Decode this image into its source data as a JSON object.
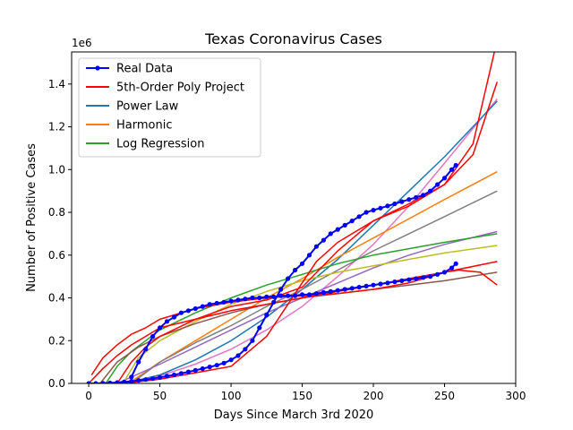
{
  "chart_data": {
    "type": "line",
    "title": "Texas Coronavirus Cases",
    "xlabel": "Days Since March 3rd 2020",
    "ylabel": "Number of Positive Cases",
    "y_scale_label": "1e6",
    "xlim": [
      -12,
      300
    ],
    "ylim": [
      0,
      1.55
    ],
    "x_ticks": [
      0,
      50,
      100,
      150,
      200,
      250,
      300
    ],
    "x_tick_labels": [
      "0",
      "50",
      "100",
      "150",
      "200",
      "250",
      "300"
    ],
    "y_ticks": [
      0,
      0.2,
      0.4,
      0.6,
      0.8,
      1.0,
      1.2,
      1.4
    ],
    "y_tick_labels": [
      "0.0",
      "0.2",
      "0.4",
      "0.6",
      "0.8",
      "1.0",
      "1.2",
      "1.4"
    ],
    "grid": false,
    "legend_placement": "top-left",
    "legend": [
      {
        "label": "Real Data",
        "color": "#0000ff",
        "marker": true
      },
      {
        "label": "5th-Order Poly Project",
        "color": "#ff0000",
        "marker": false
      },
      {
        "label": "Power Law",
        "color": "#1f77b4",
        "marker": false
      },
      {
        "label": "Harmonic",
        "color": "#ff7f0e",
        "marker": false
      },
      {
        "label": "Log Regression",
        "color": "#2ca02c",
        "marker": false
      }
    ],
    "series": [
      {
        "color": "#e377c2",
        "width": 1.5,
        "x": [
          22,
          50,
          75,
          100,
          125,
          150,
          175,
          200,
          225,
          250,
          287
        ],
        "y": [
          0,
          0.035,
          0.09,
          0.16,
          0.25,
          0.36,
          0.5,
          0.65,
          0.83,
          1.03,
          1.33
        ]
      },
      {
        "color": "#1f77b4",
        "width": 1.5,
        "x": [
          25,
          50,
          75,
          100,
          125,
          150,
          175,
          200,
          225,
          250,
          287
        ],
        "y": [
          0,
          0.04,
          0.11,
          0.2,
          0.31,
          0.44,
          0.58,
          0.74,
          0.9,
          1.06,
          1.32
        ]
      },
      {
        "color": "#ff7f0e",
        "width": 1.5,
        "x": [
          28,
          50,
          75,
          100,
          125,
          150,
          175,
          200,
          225,
          250,
          287
        ],
        "y": [
          0,
          0.1,
          0.2,
          0.3,
          0.4,
          0.49,
          0.59,
          0.68,
          0.77,
          0.86,
          0.99
        ]
      },
      {
        "color": "#7f7f7f",
        "width": 1.5,
        "x": [
          30,
          50,
          75,
          100,
          125,
          150,
          175,
          200,
          225,
          250,
          287
        ],
        "y": [
          0,
          0.1,
          0.19,
          0.27,
          0.36,
          0.44,
          0.53,
          0.62,
          0.7,
          0.78,
          0.9
        ]
      },
      {
        "color": "#9467bd",
        "width": 1.5,
        "x": [
          20,
          50,
          75,
          100,
          125,
          150,
          175,
          200,
          225,
          250,
          287
        ],
        "y": [
          0,
          0.09,
          0.17,
          0.25,
          0.33,
          0.4,
          0.47,
          0.54,
          0.6,
          0.65,
          0.71
        ]
      },
      {
        "color": "#bcbd22",
        "width": 1.5,
        "x": [
          24,
          35,
          50,
          75,
          100,
          125,
          150,
          175,
          200,
          225,
          250,
          287
        ],
        "y": [
          0,
          0.12,
          0.2,
          0.29,
          0.37,
          0.43,
          0.48,
          0.52,
          0.55,
          0.58,
          0.61,
          0.645
        ]
      },
      {
        "color": "#2ca02c",
        "width": 1.5,
        "x": [
          12,
          20,
          30,
          40,
          50,
          75,
          100,
          125,
          150,
          175,
          200,
          225,
          250,
          287
        ],
        "y": [
          0,
          0.08,
          0.15,
          0.2,
          0.25,
          0.33,
          0.4,
          0.46,
          0.51,
          0.56,
          0.6,
          0.63,
          0.66,
          0.7
        ]
      },
      {
        "color": "#8c564b",
        "width": 1.5,
        "x": [
          8,
          20,
          35,
          50,
          75,
          100,
          125,
          150,
          175,
          200,
          225,
          250,
          287
        ],
        "y": [
          0,
          0.1,
          0.17,
          0.22,
          0.28,
          0.33,
          0.37,
          0.4,
          0.42,
          0.44,
          0.46,
          0.48,
          0.52
        ]
      },
      {
        "color": "#ff0000",
        "width": 1.5,
        "x": [
          2,
          10,
          20,
          30,
          40,
          50,
          60,
          75,
          100,
          125,
          150,
          175,
          200,
          225,
          240,
          250,
          260,
          275,
          287
        ],
        "y": [
          0.04,
          0.12,
          0.18,
          0.23,
          0.26,
          0.3,
          0.32,
          0.35,
          0.38,
          0.4,
          0.41,
          0.42,
          0.44,
          0.47,
          0.5,
          0.52,
          0.53,
          0.52,
          0.46
        ]
      },
      {
        "color": "#ff0000",
        "width": 1.5,
        "x": [
          0,
          10,
          20,
          30,
          40,
          50,
          75,
          100,
          125,
          150,
          175,
          200,
          225,
          250,
          287
        ],
        "y": [
          0,
          0.07,
          0.13,
          0.18,
          0.22,
          0.26,
          0.3,
          0.34,
          0.37,
          0.4,
          0.43,
          0.46,
          0.49,
          0.52,
          0.57
        ]
      },
      {
        "color": "#ff0000",
        "width": 1.5,
        "x": [
          25,
          50,
          75,
          100,
          125,
          140,
          150,
          160,
          175,
          200,
          225,
          250,
          270,
          287
        ],
        "y": [
          0,
          0.02,
          0.05,
          0.08,
          0.22,
          0.37,
          0.47,
          0.57,
          0.66,
          0.76,
          0.84,
          0.93,
          1.07,
          1.41
        ]
      },
      {
        "color": "#ff0000",
        "width": 1.5,
        "x": [
          20,
          30,
          40,
          50,
          75,
          100,
          125,
          150,
          175,
          200,
          225,
          250,
          270,
          285
        ],
        "y": [
          0,
          0.1,
          0.17,
          0.22,
          0.3,
          0.36,
          0.39,
          0.45,
          0.62,
          0.76,
          0.83,
          0.93,
          1.12,
          1.55
        ]
      },
      {
        "color": "#0000ff",
        "width": 2,
        "markers": true,
        "x": [
          0,
          5,
          10,
          15,
          20,
          25,
          30,
          35,
          40,
          45,
          50,
          55,
          60,
          65,
          70,
          75,
          80,
          85,
          90,
          95,
          100,
          105,
          110,
          115,
          120,
          125,
          130,
          135,
          140,
          145,
          150,
          155,
          160,
          165,
          170,
          175,
          180,
          185,
          190,
          195,
          200,
          205,
          210,
          215,
          220,
          225,
          230,
          235,
          240,
          245,
          250,
          255,
          258
        ],
        "y": [
          0,
          0,
          0.001,
          0.002,
          0.004,
          0.007,
          0.01,
          0.014,
          0.018,
          0.022,
          0.028,
          0.034,
          0.04,
          0.047,
          0.054,
          0.061,
          0.069,
          0.077,
          0.085,
          0.095,
          0.11,
          0.13,
          0.16,
          0.2,
          0.26,
          0.32,
          0.38,
          0.44,
          0.49,
          0.53,
          0.56,
          0.6,
          0.64,
          0.67,
          0.7,
          0.72,
          0.74,
          0.76,
          0.78,
          0.8,
          0.81,
          0.82,
          0.83,
          0.84,
          0.85,
          0.86,
          0.87,
          0.88,
          0.9,
          0.93,
          0.96,
          1.0,
          1.02
        ]
      },
      {
        "color": "#0000ff",
        "width": 2,
        "markers": true,
        "x": [
          30,
          35,
          40,
          45,
          50,
          55,
          60,
          65,
          70,
          75,
          80,
          85,
          90,
          95,
          100,
          105,
          110,
          115,
          120,
          125,
          130,
          135,
          140,
          145,
          150,
          155,
          160,
          165,
          170,
          175,
          180,
          185,
          190,
          195,
          200,
          205,
          210,
          215,
          220,
          225,
          230,
          235,
          240,
          245,
          250,
          255,
          258
        ],
        "y": [
          0.03,
          0.1,
          0.16,
          0.22,
          0.26,
          0.29,
          0.31,
          0.33,
          0.34,
          0.35,
          0.36,
          0.37,
          0.375,
          0.38,
          0.385,
          0.39,
          0.395,
          0.4,
          0.4,
          0.405,
          0.405,
          0.41,
          0.41,
          0.41,
          0.415,
          0.415,
          0.42,
          0.425,
          0.43,
          0.435,
          0.44,
          0.445,
          0.45,
          0.455,
          0.46,
          0.465,
          0.47,
          0.475,
          0.48,
          0.485,
          0.49,
          0.495,
          0.5,
          0.51,
          0.52,
          0.54,
          0.56
        ]
      }
    ]
  }
}
